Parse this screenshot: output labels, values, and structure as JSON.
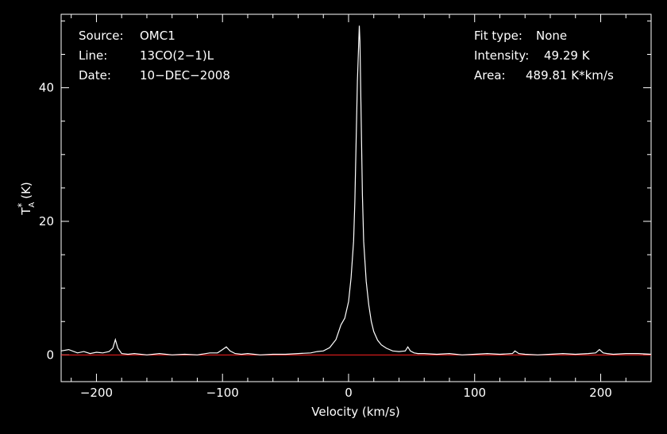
{
  "chart_data": {
    "type": "line",
    "xlabel": "Velocity (km/s)",
    "ylabel": {
      "base": "T",
      "sup": "*",
      "sub": "A",
      "unit": "(K)"
    },
    "xlim": [
      -228,
      240
    ],
    "ylim": [
      -4,
      51
    ],
    "xticks": [
      -200,
      -100,
      0,
      100,
      200
    ],
    "xtick_labels": [
      "−200",
      "−100",
      "0",
      "100",
      "200"
    ],
    "yticks": [
      0,
      20,
      40
    ],
    "ytick_labels": [
      "0",
      "20",
      "40"
    ],
    "grid": false,
    "baseline": {
      "y": 0,
      "color": "#ff2020"
    },
    "line_color": "#ffffff",
    "info_left": [
      {
        "key": "Source:",
        "value": "OMC1"
      },
      {
        "key": "Line:",
        "value": "13CO(2−1)L"
      },
      {
        "key": "Date:",
        "value": "10−DEC−2008"
      }
    ],
    "info_right": [
      {
        "key": "Fit type:",
        "value": "None"
      },
      {
        "key": "Intensity:",
        "value": "49.29 K"
      },
      {
        "key": "Area:",
        "value": "489.81 K*km/s"
      }
    ],
    "series": [
      {
        "x": [
          -228,
          -222,
          -215,
          -210,
          -205,
          -200,
          -195,
          -190,
          -187,
          -185,
          -183,
          -180,
          -175,
          -170,
          -160,
          -150,
          -140,
          -130,
          -120,
          -110,
          -104,
          -100,
          -97,
          -94,
          -90,
          -85,
          -80,
          -70,
          -60,
          -50,
          -40,
          -30,
          -25,
          -20,
          -15,
          -10,
          -6,
          -3,
          0,
          2,
          4,
          5,
          6,
          7,
          8,
          8.5,
          9,
          10,
          11,
          12,
          14,
          16,
          18,
          20,
          23,
          26,
          30,
          35,
          40,
          45,
          47,
          49,
          52,
          55,
          60,
          70,
          80,
          90,
          100,
          110,
          120,
          130,
          132,
          135,
          140,
          150,
          160,
          170,
          180,
          190,
          196,
          199,
          202,
          205,
          210,
          220,
          230,
          240
        ],
        "y": [
          0.6,
          0.8,
          0.3,
          0.5,
          0.2,
          0.4,
          0.3,
          0.5,
          1.0,
          2.3,
          1.0,
          0.2,
          0.1,
          0.2,
          0.0,
          0.2,
          0.0,
          0.1,
          0.0,
          0.3,
          0.3,
          0.8,
          1.2,
          0.6,
          0.2,
          0.1,
          0.2,
          0.0,
          0.1,
          0.1,
          0.2,
          0.3,
          0.5,
          0.6,
          1.1,
          2.3,
          4.5,
          5.5,
          8.0,
          11.5,
          17.0,
          23.0,
          32.0,
          41.0,
          46.5,
          49.29,
          47.0,
          35.0,
          24.0,
          17.0,
          11.0,
          7.5,
          5.0,
          3.5,
          2.2,
          1.5,
          1.0,
          0.6,
          0.5,
          0.6,
          1.2,
          0.6,
          0.3,
          0.2,
          0.2,
          0.1,
          0.2,
          0.0,
          0.1,
          0.2,
          0.1,
          0.2,
          0.6,
          0.2,
          0.1,
          0.0,
          0.1,
          0.2,
          0.1,
          0.2,
          0.3,
          0.8,
          0.3,
          0.2,
          0.1,
          0.2,
          0.2,
          0.1
        ]
      }
    ]
  }
}
